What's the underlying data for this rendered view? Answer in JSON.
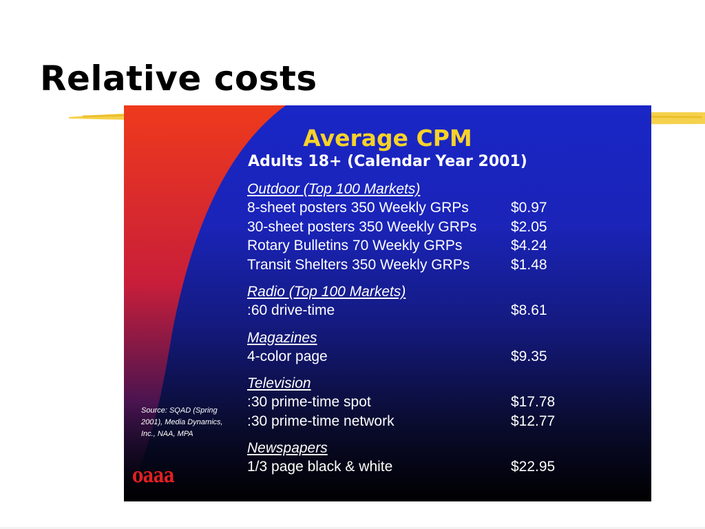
{
  "slide": {
    "title": "Relative costs"
  },
  "panel": {
    "title": "Average CPM",
    "subtitle": "Adults 18+ (Calendar Year 2001)",
    "sections": [
      {
        "heading": "Outdoor (Top 100 Markets)",
        "rows": [
          {
            "label": "8-sheet posters 350 Weekly GRPs",
            "value": "$0.97"
          },
          {
            "label": "30-sheet posters 350 Weekly GRPs",
            "value": "$2.05"
          },
          {
            "label": "Rotary Bulletins 70 Weekly GRPs",
            "value": "$4.24"
          },
          {
            "label": "Transit Shelters 350 Weekly GRPs",
            "value": "$1.48"
          }
        ]
      },
      {
        "heading": "Radio (Top 100 Markets)",
        "rows": [
          {
            "label": ":60 drive-time",
            "value": "$8.61"
          }
        ]
      },
      {
        "heading": "Magazines",
        "rows": [
          {
            "label": "4-color page",
            "value": "$9.35"
          }
        ]
      },
      {
        "heading": "Television",
        "rows": [
          {
            "label": ":30 prime-time spot",
            "value": "$17.78"
          },
          {
            "label": ":30 prime-time network",
            "value": "$12.77"
          }
        ]
      },
      {
        "heading": "Newspapers",
        "rows": [
          {
            "label": "1/3 page black & white",
            "value": "$22.95"
          }
        ]
      }
    ],
    "source": "Source:   SQAD (Spring 2001), Media Dynamics, Inc., NAA, MPA",
    "logo": "oaaa"
  },
  "colors": {
    "title_accent": "#f7d22a",
    "panel_blue": "#1a26c6",
    "swoosh_red": "#e8321e",
    "brush_yellow": "#f4cc3a"
  }
}
